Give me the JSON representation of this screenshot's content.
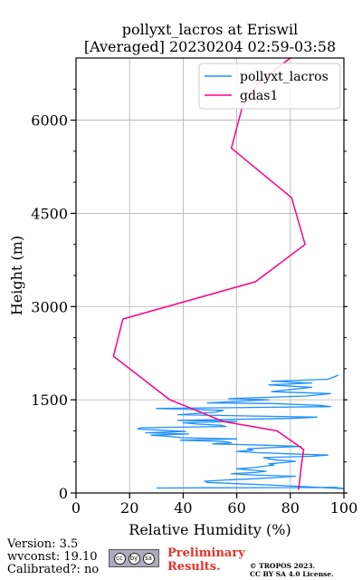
{
  "chart_data": {
    "type": "line",
    "title": [
      "pollyxt_lacros at Eriswil",
      "[Averaged] 20230204 02:59-03:58"
    ],
    "xlabel": "Relative Humidity (%)",
    "ylabel": "Height (m)",
    "xlim": [
      0,
      100
    ],
    "ylim": [
      0,
      7000
    ],
    "xticks": [
      0,
      20,
      40,
      60,
      80,
      100
    ],
    "yticks": [
      0,
      1500,
      3000,
      4500,
      6000
    ],
    "grid": true,
    "legend": "top-right",
    "series": [
      {
        "name": "pollyxt_lacros",
        "color": "#1e90ff",
        "note_style": "profile",
        "points": [
          [
            30,
            80
          ],
          [
            97,
            90
          ],
          [
            100,
            70
          ],
          [
            84,
            105
          ],
          [
            72,
            130
          ],
          [
            60,
            150
          ],
          [
            49,
            170
          ],
          [
            48,
            190
          ],
          [
            56,
            210
          ],
          [
            67,
            230
          ],
          [
            75,
            250
          ],
          [
            82,
            270
          ],
          [
            66,
            290
          ],
          [
            58,
            310
          ],
          [
            67,
            330
          ],
          [
            71,
            350
          ],
          [
            65,
            370
          ],
          [
            60,
            390
          ],
          [
            67,
            410
          ],
          [
            70,
            430
          ],
          [
            74,
            450
          ],
          [
            72,
            470
          ],
          [
            78,
            490
          ],
          [
            82,
            510
          ],
          [
            75,
            530
          ],
          [
            72,
            550
          ],
          [
            70,
            570
          ],
          [
            88,
            590
          ],
          [
            94,
            610
          ],
          [
            80,
            630
          ],
          [
            67,
            650
          ],
          [
            60,
            670
          ],
          [
            66,
            690
          ],
          [
            64,
            710
          ],
          [
            73,
            730
          ],
          [
            84,
            750
          ],
          [
            70,
            770
          ],
          [
            51,
            790
          ],
          [
            58,
            810
          ],
          [
            55,
            830
          ],
          [
            39,
            850
          ],
          [
            60,
            870
          ],
          [
            40,
            890
          ],
          [
            35,
            910
          ],
          [
            28,
            930
          ],
          [
            42,
            950
          ],
          [
            26,
            970
          ],
          [
            41,
            990
          ],
          [
            32,
            1010
          ],
          [
            23,
            1030
          ],
          [
            24,
            1050
          ],
          [
            56,
            1070
          ],
          [
            54,
            1090
          ],
          [
            45,
            1110
          ],
          [
            40,
            1130
          ],
          [
            60,
            1150
          ],
          [
            38,
            1170
          ],
          [
            80,
            1200
          ],
          [
            90,
            1220
          ],
          [
            38,
            1260
          ],
          [
            52,
            1300
          ],
          [
            55,
            1330
          ],
          [
            30,
            1360
          ],
          [
            95,
            1390
          ],
          [
            91,
            1410
          ],
          [
            74,
            1440
          ],
          [
            49,
            1450
          ],
          [
            72,
            1500
          ],
          [
            57,
            1520
          ],
          [
            86,
            1560
          ],
          [
            95,
            1600
          ],
          [
            73,
            1630
          ],
          [
            79,
            1660
          ],
          [
            88,
            1700
          ],
          [
            72,
            1740
          ],
          [
            88,
            1770
          ],
          [
            73,
            1800
          ],
          [
            94,
            1830
          ],
          [
            97,
            1880
          ],
          [
            98,
            1900
          ]
        ]
      },
      {
        "name": "gdas1",
        "color": "#ff0080",
        "points": [
          [
            83,
            50
          ],
          [
            83.5,
            200
          ],
          [
            84,
            400
          ],
          [
            85,
            700
          ],
          [
            75,
            1000
          ],
          [
            55,
            1150
          ],
          [
            35,
            1500
          ],
          [
            14,
            2200
          ],
          [
            17.5,
            2800
          ],
          [
            67,
            3400
          ],
          [
            85.5,
            4000
          ],
          [
            80.5,
            4750
          ],
          [
            58,
            5550
          ],
          [
            62,
            6200
          ],
          [
            68,
            6600
          ],
          [
            80,
            7000
          ]
        ]
      }
    ]
  },
  "footer": {
    "version": "Version: 3.5",
    "wvconst": "wvconst:  19.10",
    "calibrated": "Calibrated?: no",
    "license_badge": [
      "cc",
      "by",
      "sa"
    ],
    "preliminary": [
      "Preliminary",
      "Results."
    ],
    "copyright": [
      "© TROPOS 2023.",
      "CC BY SA 4.0 License."
    ]
  }
}
